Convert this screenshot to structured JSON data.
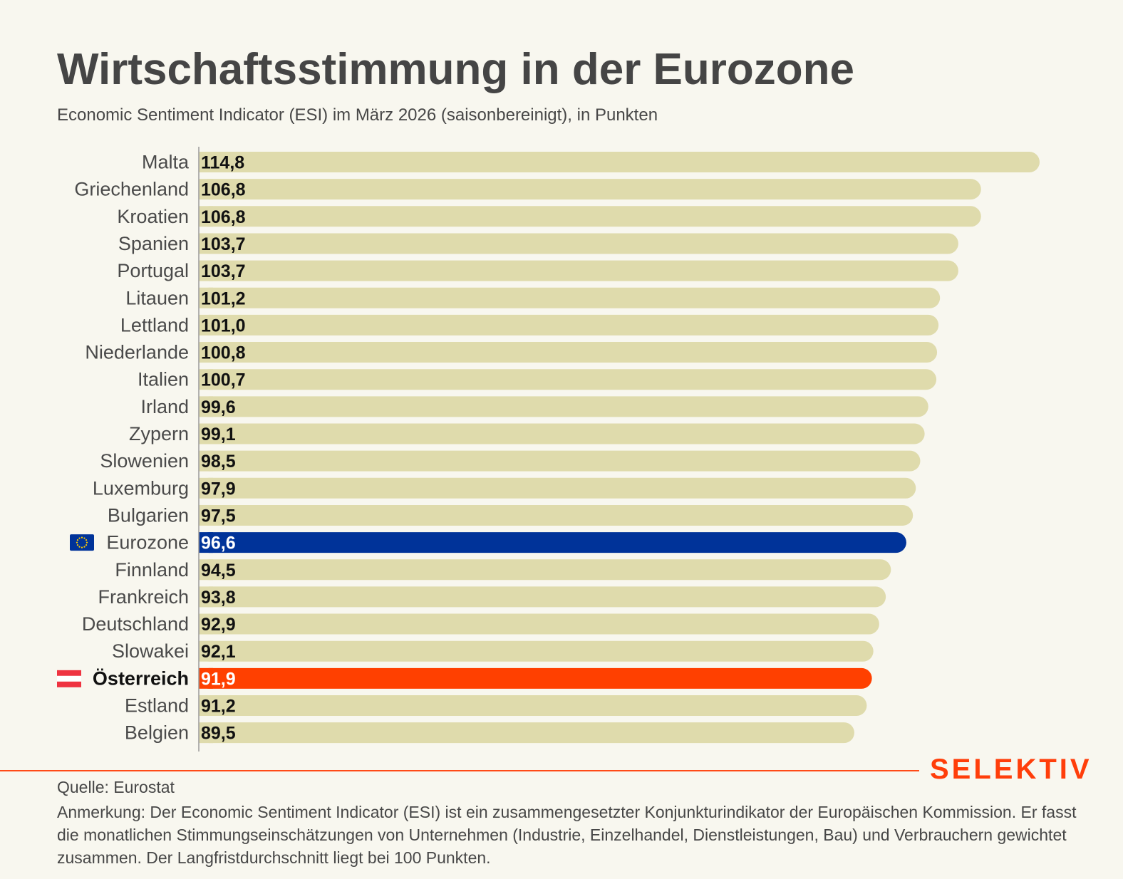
{
  "header": {
    "title": "Wirtschaftsstimmung in der Eurozone",
    "subtitle": "Economic Sentiment Indicator (ESI) im März 2026 (saisonbereinigt), in Punkten"
  },
  "chart_data": {
    "type": "bar",
    "orientation": "horizontal",
    "title": "Wirtschaftsstimmung in der Eurozone",
    "subtitle": "Economic Sentiment Indicator (ESI) im März 2026 (saisonbereinigt), in Punkten",
    "xlabel": "",
    "ylabel": "",
    "xlim": [
      0,
      114.8
    ],
    "grid": false,
    "legend": "none",
    "categories": [
      "Malta",
      "Griechenland",
      "Kroatien",
      "Spanien",
      "Portugal",
      "Litauen",
      "Lettland",
      "Niederlande",
      "Italien",
      "Irland",
      "Zypern",
      "Slowenien",
      "Luxemburg",
      "Bulgarien",
      "Eurozone",
      "Finnland",
      "Frankreich",
      "Deutschland",
      "Slowakei",
      "Österreich",
      "Estland",
      "Belgien"
    ],
    "values": [
      114.8,
      106.8,
      106.8,
      103.7,
      103.7,
      101.2,
      101.0,
      100.8,
      100.7,
      99.6,
      99.1,
      98.5,
      97.9,
      97.5,
      96.6,
      94.5,
      93.8,
      92.9,
      92.1,
      91.9,
      91.2,
      89.5
    ],
    "value_labels": [
      "114,8",
      "106,8",
      "106,8",
      "103,7",
      "103,7",
      "101,2",
      "101,0",
      "100,8",
      "100,7",
      "99,6",
      "99,1",
      "98,5",
      "97,9",
      "97,5",
      "96,6",
      "94,5",
      "93,8",
      "92,9",
      "92,1",
      "91,9",
      "91,2",
      "89,5"
    ],
    "highlights": {
      "Eurozone": {
        "color": "#003399",
        "icon": "eu-flag-icon"
      },
      "Österreich": {
        "color": "#ff4000",
        "icon": "austria-flag-icon",
        "bold_label": true
      }
    },
    "default_bar_color": "#dfdbac"
  },
  "colors": {
    "background": "#f8f7ef",
    "bar_default": "#dfdbac",
    "bar_eurozone": "#003399",
    "bar_austria": "#ff4000",
    "accent": "#ff3e0a"
  },
  "footer": {
    "brand": "SELEKTIV",
    "source": "Quelle: Eurostat",
    "note": "Anmerkung: Der Economic Sentiment Indicator (ESI) ist ein zusammengesetzter Konjunkturindikator der Europäischen Kommission. Er fasst die monatlichen Stimmungseinschätzungen von Unternehmen (Industrie, Einzelhandel, Dienstleistungen, Bau) und Verbrauchern gewichtet zusammen. Der Langfristdurchschnitt liegt bei 100 Punkten."
  }
}
